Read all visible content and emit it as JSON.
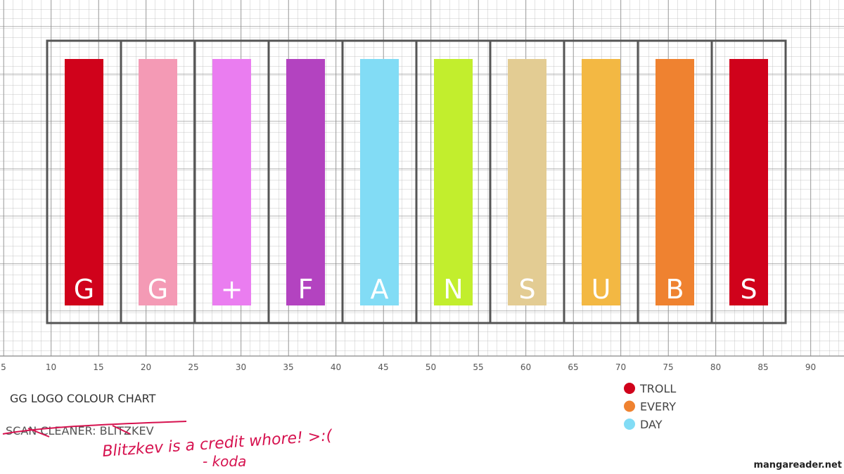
{
  "title": "GG LOGO COLOUR CHART",
  "credit": "SCAN CLEANER: BLITZKEV",
  "note": "Blitzkev is a credit whore! >:(",
  "signature": "- koda",
  "watermark": "mangareader.net",
  "bars": [
    {
      "letter": "G",
      "color": "#d0021b"
    },
    {
      "letter": "G",
      "color": "#f49ab5"
    },
    {
      "letter": "+",
      "color": "#ea7df0"
    },
    {
      "letter": "F",
      "color": "#b343c0"
    },
    {
      "letter": "A",
      "color": "#82dcf5"
    },
    {
      "letter": "N",
      "color": "#c2ee2d"
    },
    {
      "letter": "S",
      "color": "#e3cc93"
    },
    {
      "letter": "U",
      "color": "#f3b843"
    },
    {
      "letter": "B",
      "color": "#ef8230"
    },
    {
      "letter": "S",
      "color": "#d0021b"
    }
  ],
  "scale": [
    5,
    10,
    15,
    20,
    25,
    30,
    35,
    40,
    45,
    50,
    55,
    60,
    65,
    70,
    75,
    80,
    85,
    90
  ],
  "legend": [
    {
      "label": "TROLL",
      "color": "#d0021b"
    },
    {
      "label": "EVERY",
      "color": "#ef8230"
    },
    {
      "label": "DAY",
      "color": "#82dcf5"
    }
  ]
}
